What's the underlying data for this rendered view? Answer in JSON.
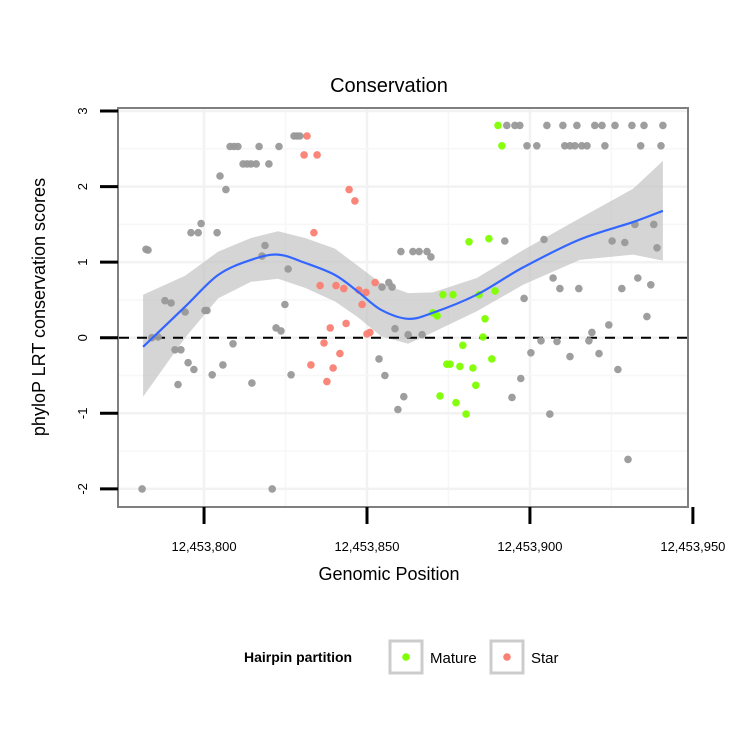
{
  "chart_data": {
    "type": "scatter",
    "title": "Conservation",
    "xlabel": "Genomic Position",
    "ylabel": "phyloP LRT conservation scores",
    "xlim": [
      12453773.6,
      12453948.5
    ],
    "ylim": [
      -2.24,
      3.04
    ],
    "x_ticks": [
      12453800,
      12453850,
      12453900,
      12453950
    ],
    "x_tick_labels": [
      "12,453,800",
      "12,453,850",
      "12,453,900",
      "12,453,950"
    ],
    "y_ticks": [
      3,
      2,
      1,
      0,
      -1,
      -2
    ],
    "y_tick_labels": [
      "3",
      "2",
      "1",
      "0",
      "-1",
      "-2"
    ],
    "grid": true,
    "reference_line": {
      "y": 0,
      "style": "dashed",
      "color": "#000000"
    },
    "legend": {
      "title": "Hairpin partition",
      "placement": "bottom",
      "entries": [
        "Mature",
        "Star"
      ]
    },
    "colors": {
      "Other": "#999999",
      "Mature": "#7FFF00",
      "Star": "#FA8072",
      "smooth": "#3366FF",
      "band": "#D3D3D3"
    },
    "series": [
      {
        "name": "Other",
        "points": [
          [
            12453781.0,
            -2.0
          ],
          [
            12453782.2,
            1.17
          ],
          [
            12453782.8,
            1.16
          ],
          [
            12453784.0,
            0.0
          ],
          [
            12453785.9,
            0.01
          ],
          [
            12453788.0,
            0.49
          ],
          [
            12453789.9,
            0.46
          ],
          [
            12453791.1,
            -0.16
          ],
          [
            12453792.9,
            -0.16
          ],
          [
            12453792.0,
            -0.62
          ],
          [
            12453794.2,
            0.34
          ],
          [
            12453795.1,
            -0.33
          ],
          [
            12453796.9,
            -0.42
          ],
          [
            12453796.0,
            1.39
          ],
          [
            12453798.2,
            1.39
          ],
          [
            12453799.1,
            1.51
          ],
          [
            12453800.3,
            0.36
          ],
          [
            12453800.9,
            0.36
          ],
          [
            12453802.5,
            -0.49
          ],
          [
            12453804.0,
            1.39
          ],
          [
            12453804.9,
            2.14
          ],
          [
            12453805.8,
            -0.36
          ],
          [
            12453806.7,
            1.96
          ],
          [
            12453808.0,
            2.53
          ],
          [
            12453809.2,
            2.53
          ],
          [
            12453810.4,
            2.53
          ],
          [
            12453808.9,
            -0.08
          ],
          [
            12453812.0,
            2.3
          ],
          [
            12453813.2,
            2.3
          ],
          [
            12453814.4,
            2.3
          ],
          [
            12453816.0,
            2.3
          ],
          [
            12453814.7,
            -0.6
          ],
          [
            12453816.9,
            2.53
          ],
          [
            12453817.8,
            1.08
          ],
          [
            12453818.7,
            1.22
          ],
          [
            12453819.9,
            2.3
          ],
          [
            12453820.9,
            -2.0
          ],
          [
            12453822.1,
            0.13
          ],
          [
            12453823.6,
            0.09
          ],
          [
            12453823.0,
            2.53
          ],
          [
            12453824.8,
            0.44
          ],
          [
            12453825.8,
            0.91
          ],
          [
            12453826.7,
            -0.49
          ],
          [
            12453827.6,
            2.67
          ],
          [
            12453828.5,
            2.67
          ],
          [
            12453829.4,
            2.67
          ],
          [
            12453853.7,
            -0.28
          ],
          [
            12453854.6,
            0.67
          ],
          [
            12453855.5,
            -0.5
          ],
          [
            12453856.7,
            0.73
          ],
          [
            12453857.7,
            0.67
          ],
          [
            12453858.6,
            0.12
          ],
          [
            12453859.5,
            -0.95
          ],
          [
            12453860.4,
            1.14
          ],
          [
            12453861.3,
            -0.78
          ],
          [
            12453862.6,
            0.04
          ],
          [
            12453864.1,
            1.14
          ],
          [
            12453866.0,
            1.14
          ],
          [
            12453866.9,
            0.04
          ],
          [
            12453868.4,
            1.14
          ],
          [
            12453869.6,
            1.07
          ],
          [
            12453892.3,
            1.28
          ],
          [
            12453892.9,
            2.81
          ],
          [
            12453894.5,
            -0.79
          ],
          [
            12453895.4,
            2.81
          ],
          [
            12453896.9,
            2.81
          ],
          [
            12453897.2,
            -0.54
          ],
          [
            12453898.2,
            0.52
          ],
          [
            12453899.1,
            2.54
          ],
          [
            12453900.3,
            -0.2
          ],
          [
            12453902.1,
            2.54
          ],
          [
            12453903.4,
            -0.04
          ],
          [
            12453904.3,
            1.3
          ],
          [
            12453905.2,
            2.81
          ],
          [
            12453906.1,
            -1.01
          ],
          [
            12453907.1,
            0.79
          ],
          [
            12453908.3,
            -0.05
          ],
          [
            12453909.2,
            0.65
          ],
          [
            12453910.1,
            2.81
          ],
          [
            12453910.7,
            2.54
          ],
          [
            12453912.3,
            -0.25
          ],
          [
            12453912.3,
            2.54
          ],
          [
            12453913.8,
            2.54
          ],
          [
            12453914.4,
            2.81
          ],
          [
            12453915.0,
            0.65
          ],
          [
            12453915.9,
            2.54
          ],
          [
            12453917.5,
            2.54
          ],
          [
            12453918.1,
            -0.04
          ],
          [
            12453919.0,
            0.07
          ],
          [
            12453919.9,
            2.81
          ],
          [
            12453921.2,
            -0.21
          ],
          [
            12453922.1,
            2.81
          ],
          [
            12453923.0,
            2.54
          ],
          [
            12453924.2,
            0.17
          ],
          [
            12453925.2,
            1.28
          ],
          [
            12453926.1,
            2.81
          ],
          [
            12453927.0,
            -0.42
          ],
          [
            12453928.2,
            0.65
          ],
          [
            12453929.1,
            1.26
          ],
          [
            12453930.1,
            -1.61
          ],
          [
            12453931.3,
            2.81
          ],
          [
            12453932.2,
            1.5
          ],
          [
            12453933.1,
            0.79
          ],
          [
            12453934.0,
            2.54
          ],
          [
            12453935.0,
            2.81
          ],
          [
            12453935.9,
            0.28
          ],
          [
            12453937.1,
            0.7
          ],
          [
            12453938.0,
            1.5
          ],
          [
            12453939.0,
            1.19
          ],
          [
            12453940.2,
            2.54
          ],
          [
            12453940.8,
            2.81
          ]
        ]
      },
      {
        "name": "Star",
        "points": [
          [
            12453831.6,
            2.67
          ],
          [
            12453830.7,
            2.42
          ],
          [
            12453834.7,
            2.42
          ],
          [
            12453844.5,
            1.96
          ],
          [
            12453846.3,
            1.81
          ],
          [
            12453833.7,
            1.39
          ],
          [
            12453835.6,
            0.69
          ],
          [
            12453840.5,
            0.69
          ],
          [
            12453842.9,
            0.65
          ],
          [
            12453838.7,
            0.13
          ],
          [
            12453843.6,
            0.19
          ],
          [
            12453836.8,
            -0.07
          ],
          [
            12453841.7,
            -0.21
          ],
          [
            12453832.8,
            -0.36
          ],
          [
            12453839.6,
            -0.4
          ],
          [
            12453837.7,
            -0.58
          ],
          [
            12453847.5,
            0.63
          ],
          [
            12453849.7,
            0.6
          ],
          [
            12453848.5,
            0.44
          ],
          [
            12453852.5,
            0.73
          ],
          [
            12453850.9,
            0.07
          ],
          [
            12453850.0,
            0.05
          ]
        ]
      },
      {
        "name": "Mature",
        "points": [
          [
            12453890.2,
            2.81
          ],
          [
            12453891.4,
            2.54
          ],
          [
            12453881.3,
            1.27
          ],
          [
            12453887.4,
            1.31
          ],
          [
            12453873.3,
            0.57
          ],
          [
            12453876.4,
            0.57
          ],
          [
            12453884.4,
            0.57
          ],
          [
            12453889.3,
            0.62
          ],
          [
            12453870.2,
            0.33
          ],
          [
            12453871.5,
            0.29
          ],
          [
            12453886.2,
            0.25
          ],
          [
            12453885.6,
            0.01
          ],
          [
            12453879.4,
            -0.1
          ],
          [
            12453888.3,
            -0.28
          ],
          [
            12453874.5,
            -0.35
          ],
          [
            12453875.5,
            -0.35
          ],
          [
            12453878.5,
            -0.38
          ],
          [
            12453882.5,
            -0.4
          ],
          [
            12453883.4,
            -0.63
          ],
          [
            12453872.4,
            -0.77
          ],
          [
            12453877.3,
            -0.86
          ],
          [
            12453880.4,
            -1.01
          ]
        ]
      }
    ],
    "smooth": {
      "x": [
        12453781.3,
        12453794.2,
        12453804.3,
        12453814.4,
        12453822.7,
        12453831.0,
        12453840.2,
        12453847.2,
        12453854.3,
        12453862.6,
        12453870.2,
        12453883.7,
        12453897.9,
        12453915.3,
        12453931.6,
        12453940.8
      ],
      "y": [
        -0.12,
        0.41,
        0.83,
        1.03,
        1.1,
        0.99,
        0.83,
        0.61,
        0.37,
        0.25,
        0.33,
        0.57,
        0.93,
        1.3,
        1.53,
        1.68
      ],
      "ymin": [
        -0.78,
        0.0,
        0.52,
        0.74,
        0.78,
        0.66,
        0.48,
        0.27,
        0.02,
        -0.08,
        0.07,
        0.35,
        0.7,
        1.03,
        1.1,
        1.02
      ],
      "ymax": [
        0.57,
        0.82,
        1.14,
        1.32,
        1.41,
        1.32,
        1.18,
        0.95,
        0.72,
        0.59,
        0.6,
        0.79,
        1.16,
        1.58,
        1.97,
        2.34
      ]
    }
  }
}
